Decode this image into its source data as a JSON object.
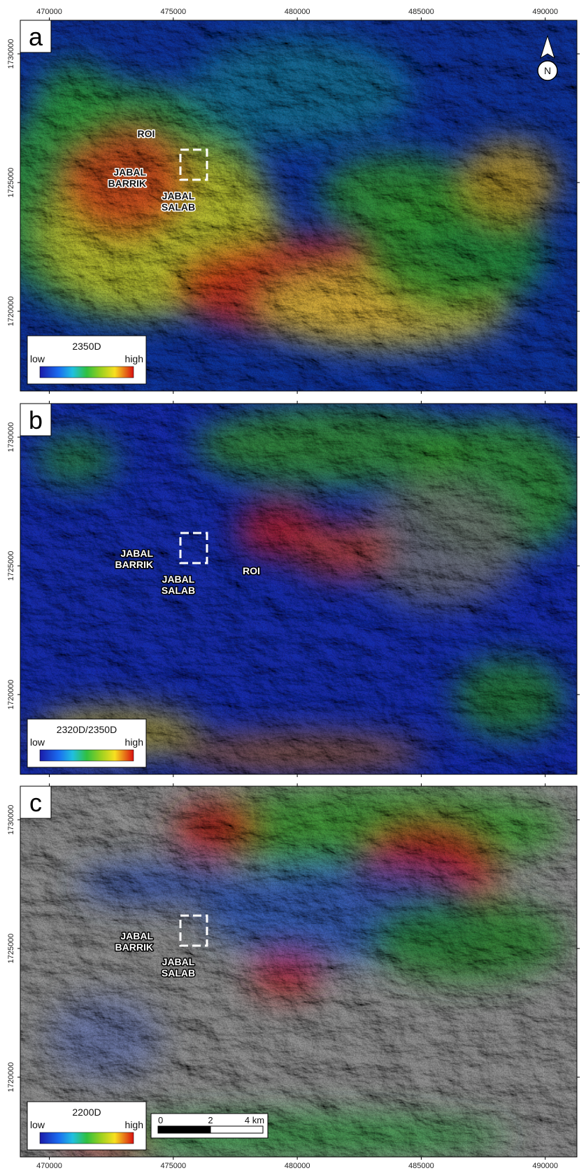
{
  "grid": {
    "eastings": [
      470000,
      475000,
      480000,
      485000,
      490000
    ],
    "northings": [
      1730000,
      1725000,
      1720000
    ]
  },
  "north_arrow": "N",
  "scale_bar": {
    "labels": [
      "0",
      "2",
      "4 km"
    ]
  },
  "panels": [
    {
      "label": "a",
      "legend": {
        "title": "2350D",
        "low": "low",
        "high": "high"
      },
      "annotations": [
        {
          "lines": [
            "ROI"
          ]
        },
        {
          "lines": [
            "JABAL",
            "BARRIK"
          ]
        },
        {
          "lines": [
            "JABAL",
            "SALAB"
          ]
        }
      ]
    },
    {
      "label": "b",
      "legend": {
        "title": "2320D/2350D",
        "low": "low",
        "high": "high"
      },
      "annotations": [
        {
          "lines": [
            "JABAL",
            "BARRIK"
          ]
        },
        {
          "lines": [
            "JABAL",
            "SALAB"
          ]
        },
        {
          "lines": [
            "ROI"
          ]
        }
      ]
    },
    {
      "label": "c",
      "legend": {
        "title": "2200D",
        "low": "low",
        "high": "high"
      },
      "annotations": [
        {
          "lines": [
            "JABAL",
            "BARRIK"
          ]
        },
        {
          "lines": [
            "JABAL",
            "SALAB"
          ]
        }
      ]
    }
  ]
}
